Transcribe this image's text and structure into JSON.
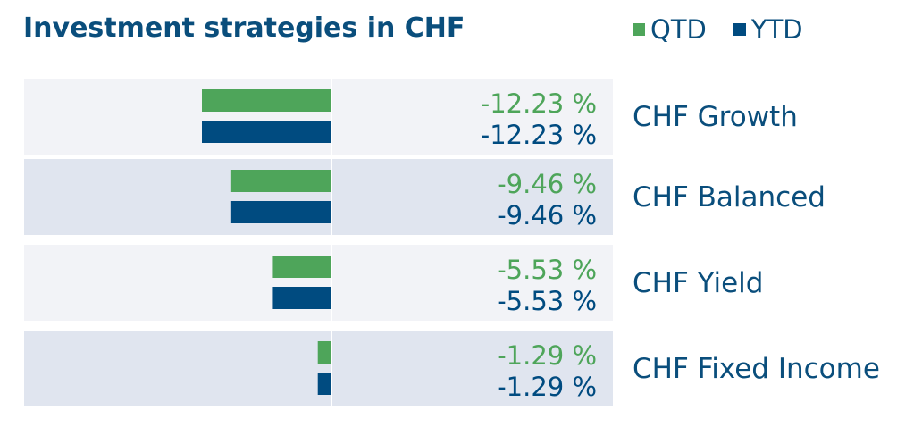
{
  "title": "Investment strategies in CHF",
  "colors": {
    "qtd": "#4ea55a",
    "ytd": "#004b80",
    "text": "#0a4e7c",
    "band_light": "#f2f3f7",
    "band_dark": "#e0e5ef",
    "axis": "#ffffff"
  },
  "chart_data": {
    "type": "bar",
    "orientation": "horizontal",
    "categories": [
      "CHF Growth",
      "CHF Balanced",
      "CHF Yield",
      "CHF Fixed Income"
    ],
    "series": [
      {
        "name": "QTD",
        "values": [
          -12.23,
          -9.46,
          -5.53,
          -1.29
        ],
        "labels": [
          "-12.23 %",
          "-9.46 %",
          "-5.53 %",
          "-1.29 %"
        ]
      },
      {
        "name": "YTD",
        "values": [
          -12.23,
          -9.46,
          -5.53,
          -1.29
        ],
        "labels": [
          "-12.23 %",
          "-9.46 %",
          "-5.53 %",
          "-1.29 %"
        ]
      }
    ],
    "xlim": [
      -12.23,
      0
    ],
    "grid": false,
    "legend": "top-right"
  }
}
